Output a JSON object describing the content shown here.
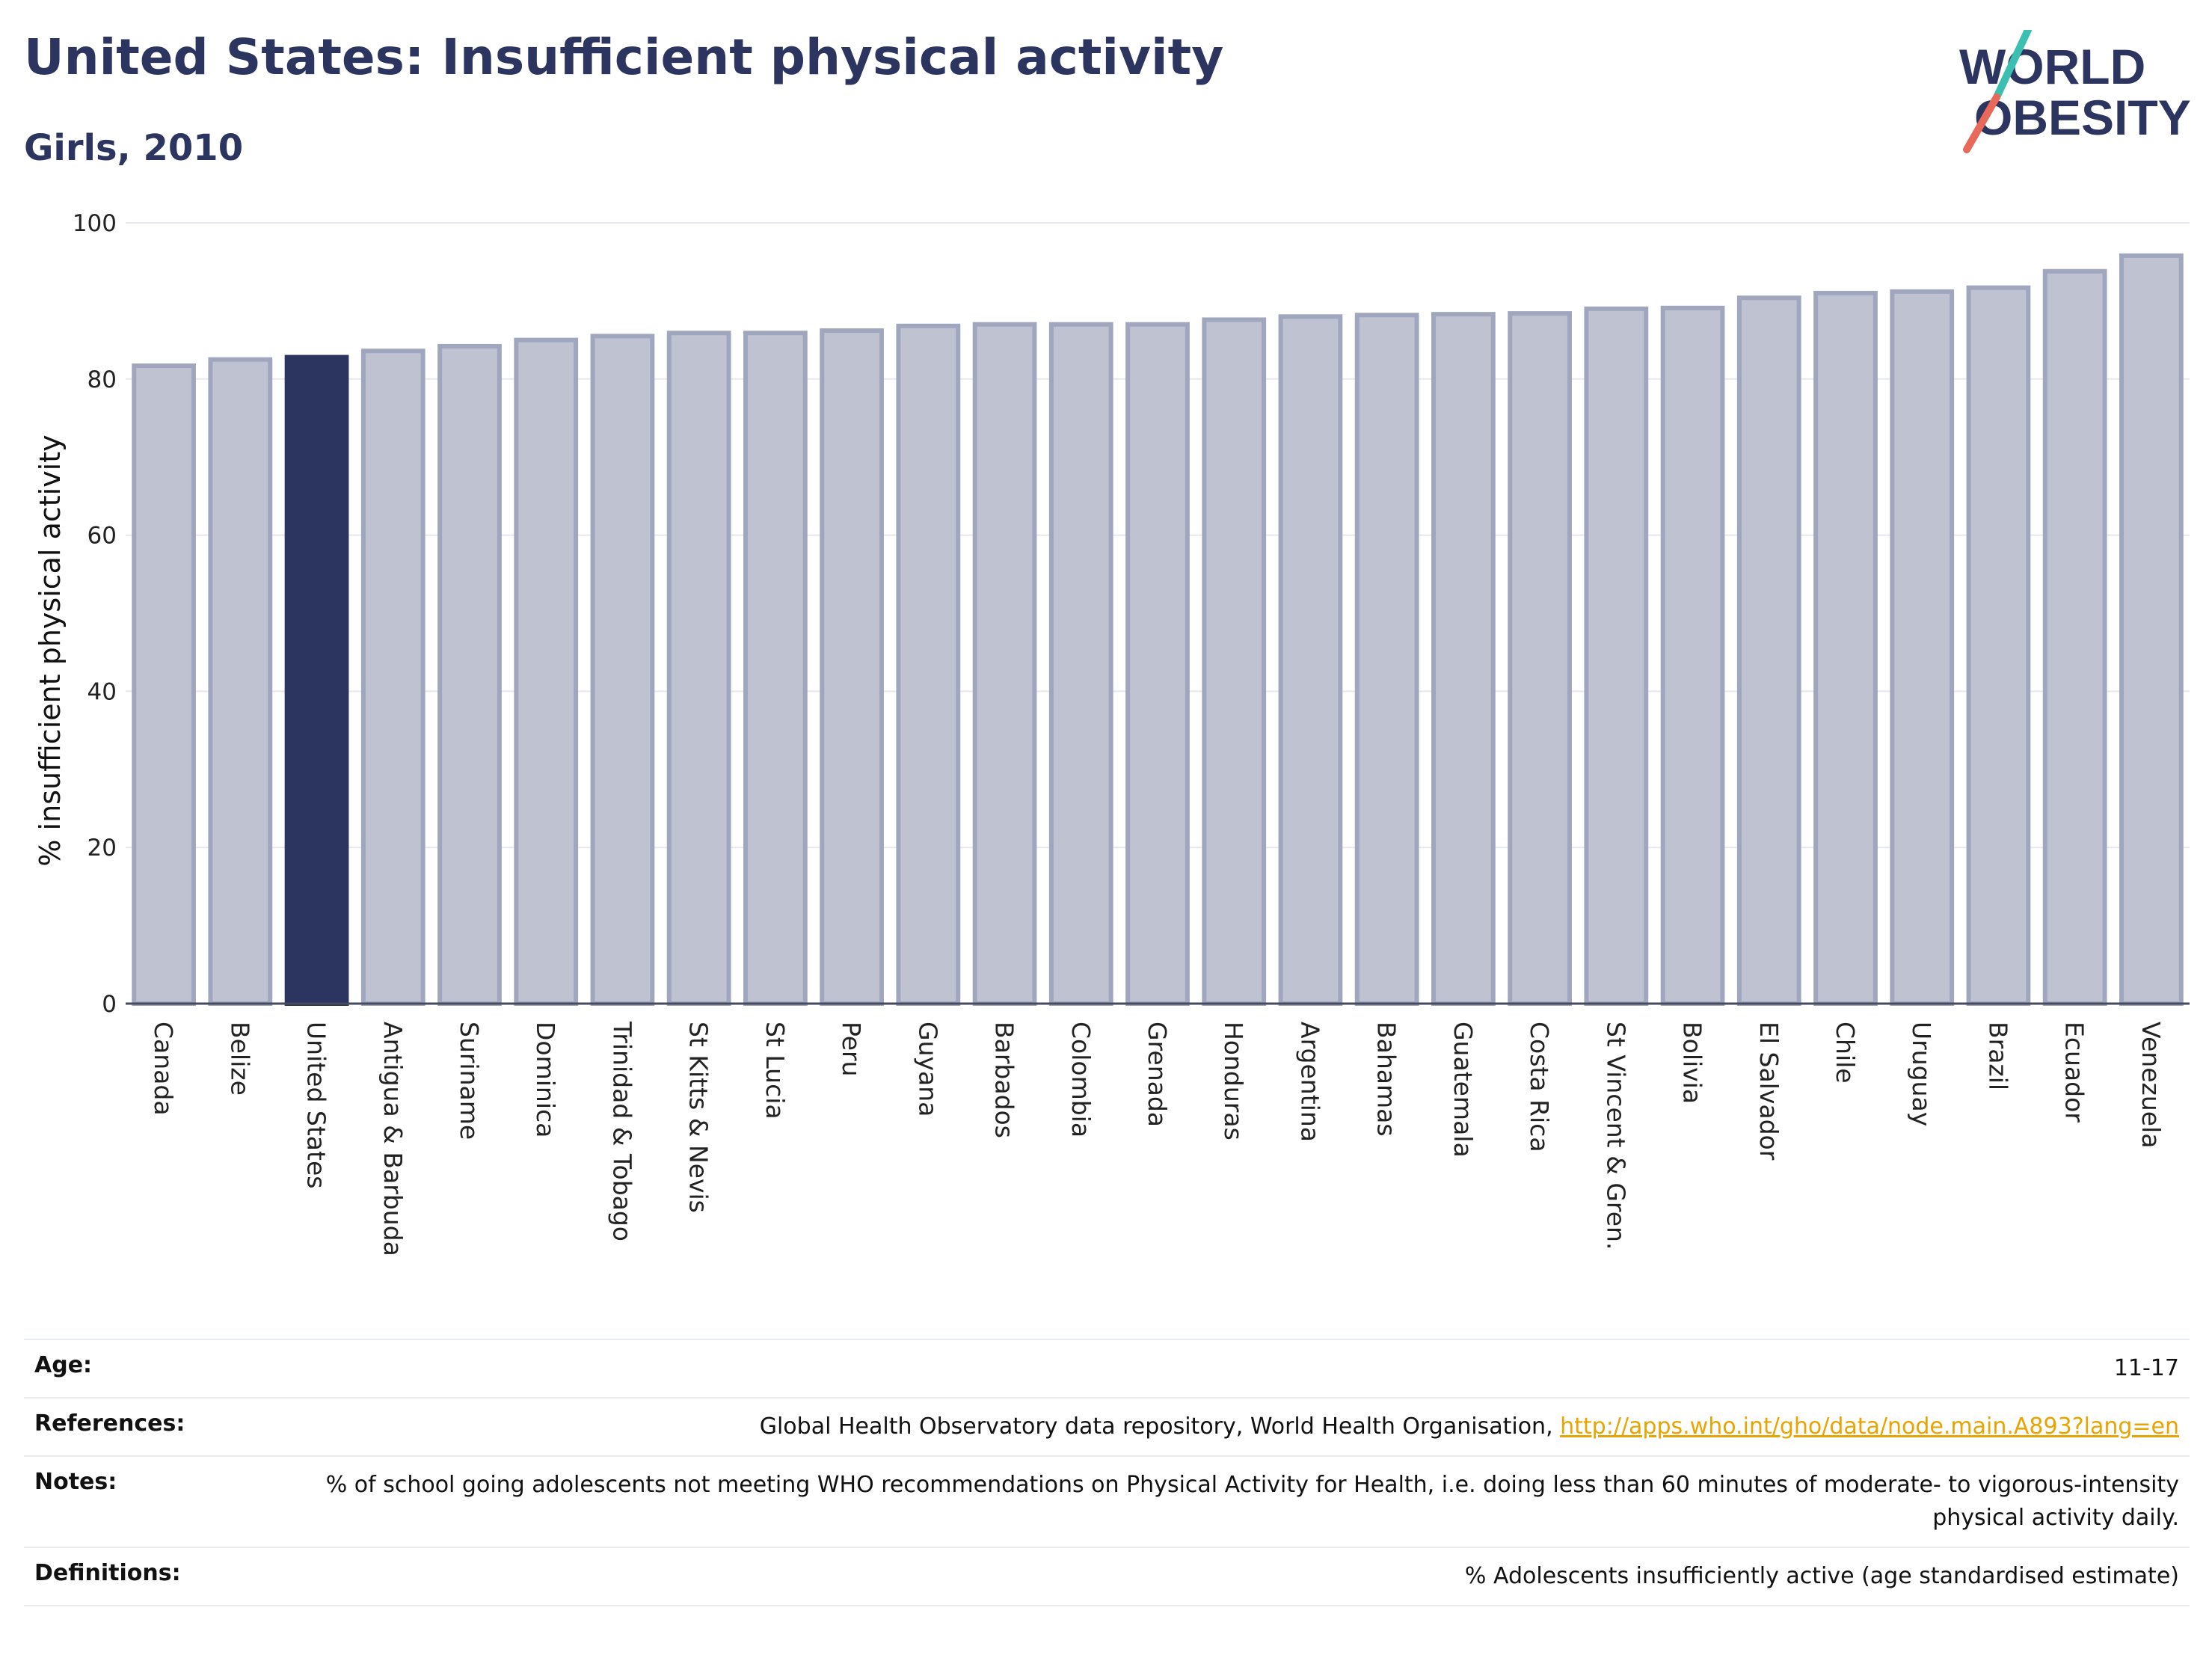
{
  "header": {
    "title": "United States: Insufficient physical activity",
    "subtitle": "Girls, 2010"
  },
  "logo": {
    "line1": "WORLD",
    "line2": "OBESITY"
  },
  "colors": {
    "highlight": "#2b355f",
    "bar": "#bfc2d1",
    "bar_border": "#a1a6bf",
    "accent_teal": "#3bbfb0",
    "accent_red": "#e8685a"
  },
  "chart_data": {
    "type": "bar",
    "title": "United States: Insufficient physical activity",
    "subtitle": "Girls, 2010",
    "ylabel": "% insufficient physical activity",
    "xlabel": "",
    "ylim": [
      0,
      100
    ],
    "yticks": [
      0,
      20,
      40,
      60,
      80,
      100
    ],
    "grid": true,
    "highlight": "United States",
    "categories": [
      "Canada",
      "Belize",
      "United States",
      "Antigua & Barbuda",
      "Suriname",
      "Dominica",
      "Trinidad & Tobago",
      "St Kitts & Nevis",
      "St Lucia",
      "Peru",
      "Guyana",
      "Barbados",
      "Colombia",
      "Grenada",
      "Honduras",
      "Argentina",
      "Bahamas",
      "Guatemala",
      "Costa Rica",
      "St Vincent & Gren.",
      "Bolivia",
      "El Salvador",
      "Chile",
      "Uruguay",
      "Brazil",
      "Ecuador",
      "Venezuela"
    ],
    "values": [
      81.7,
      82.5,
      82.8,
      83.6,
      84.2,
      85.0,
      85.5,
      85.9,
      85.9,
      86.2,
      86.8,
      87.0,
      87.0,
      87.0,
      87.6,
      88.0,
      88.2,
      88.3,
      88.4,
      89.0,
      89.1,
      90.4,
      91.0,
      91.2,
      91.7,
      93.8,
      95.8
    ]
  },
  "meta": {
    "age_label": "Age:",
    "age_value": "11-17",
    "references_label": "References:",
    "references_text": "Global Health Observatory data repository, World Health Organisation, ",
    "references_link": "http://apps.who.int/gho/data/node.main.A893?lang=en",
    "notes_label": "Notes:",
    "notes_text": "% of school going adolescents not meeting WHO recommendations on Physical Activity for Health, i.e. doing less than 60 minutes of moderate- to vigorous-intensity physical activity daily.",
    "definitions_label": "Definitions:",
    "definitions_text": "% Adolescents insufficiently active (age standardised estimate)"
  }
}
